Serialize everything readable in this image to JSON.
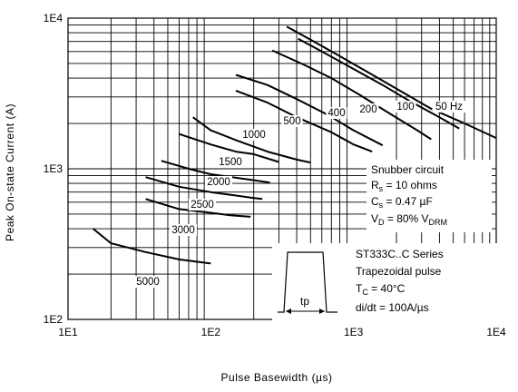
{
  "chart_data": {
    "type": "line",
    "title": "",
    "xlabel": "Pulse Basewidth (µs)",
    "ylabel": "Peak On-state Current (A)",
    "x_scale": "log",
    "y_scale": "log",
    "xlim": [
      10,
      10000
    ],
    "ylim": [
      100,
      10000
    ],
    "x_ticks": [
      "1E1",
      "1E2",
      "1E3",
      "1E4"
    ],
    "y_ticks": [
      "1E2",
      "1E3",
      "1E4"
    ],
    "grid": true,
    "series": [
      {
        "name": "50 Hz",
        "label": "50 Hz",
        "points": [
          [
            340,
            8800
          ],
          [
            500,
            7200
          ],
          [
            800,
            5600
          ],
          [
            1300,
            4300
          ],
          [
            2000,
            3400
          ],
          [
            3500,
            2500
          ],
          [
            6000,
            2000
          ],
          [
            10000,
            1600
          ]
        ]
      },
      {
        "name": "100",
        "label": "100",
        "points": [
          [
            410,
            7300
          ],
          [
            600,
            6000
          ],
          [
            1000,
            4600
          ],
          [
            1600,
            3600
          ],
          [
            2500,
            2800
          ],
          [
            4000,
            2200
          ],
          [
            5500,
            1850
          ]
        ]
      },
      {
        "name": "200",
        "label": "200",
        "points": [
          [
            270,
            6100
          ],
          [
            450,
            4900
          ],
          [
            700,
            4000
          ],
          [
            1100,
            3100
          ],
          [
            1700,
            2400
          ],
          [
            2800,
            1800
          ],
          [
            3500,
            1570
          ]
        ]
      },
      {
        "name": "400",
        "label": "400",
        "points": [
          [
            150,
            4200
          ],
          [
            250,
            3600
          ],
          [
            400,
            2900
          ],
          [
            650,
            2300
          ],
          [
            1000,
            1800
          ],
          [
            1600,
            1430
          ]
        ]
      },
      {
        "name": "500",
        "label": "500",
        "points": [
          [
            150,
            3300
          ],
          [
            250,
            2750
          ],
          [
            400,
            2200
          ],
          [
            700,
            1750
          ],
          [
            1000,
            1450
          ],
          [
            1350,
            1300
          ]
        ]
      },
      {
        "name": "1000",
        "label": "1000",
        "points": [
          [
            75,
            2200
          ],
          [
            100,
            1800
          ],
          [
            150,
            1550
          ],
          [
            250,
            1300
          ],
          [
            400,
            1150
          ],
          [
            500,
            1100
          ]
        ]
      },
      {
        "name": "1500",
        "label": "1500",
        "points": [
          [
            60,
            1700
          ],
          [
            100,
            1450
          ],
          [
            150,
            1300
          ],
          [
            200,
            1250
          ],
          [
            300,
            1110
          ]
        ]
      },
      {
        "name": "2000",
        "label": "2000",
        "points": [
          [
            45,
            1130
          ],
          [
            70,
            1000
          ],
          [
            100,
            920
          ],
          [
            200,
            840
          ],
          [
            260,
            810
          ]
        ]
      },
      {
        "name": "2500",
        "label": "2500",
        "points": [
          [
            35,
            880
          ],
          [
            60,
            760
          ],
          [
            100,
            700
          ],
          [
            200,
            640
          ],
          [
            230,
            630
          ]
        ]
      },
      {
        "name": "3000",
        "label": "3000",
        "points": [
          [
            35,
            630
          ],
          [
            60,
            540
          ],
          [
            100,
            510
          ],
          [
            140,
            490
          ],
          [
            190,
            480
          ]
        ]
      },
      {
        "name": "5000",
        "label": "5000",
        "points": [
          [
            15,
            400
          ],
          [
            20,
            320
          ],
          [
            35,
            280
          ],
          [
            60,
            250
          ],
          [
            100,
            235
          ]
        ]
      }
    ],
    "annotations": {
      "snubber_title": "Snubber circuit",
      "rs_main": "R",
      "rs_sub": "s",
      "rs_value": " = 10 ohms",
      "cs_main": "C",
      "cs_sub": "s",
      "cs_value": " = 0.47 µF",
      "vd_main": "V",
      "vd_sub": "D",
      "vd_mid": " = 80% V",
      "vd_sub2": "DRM",
      "series_line1": "ST333C..C Series",
      "series_line2": "Trapezoidal pulse",
      "tc_main": "T",
      "tc_sub": "C",
      "tc_value": " = 40°C",
      "didt": "di/dt = 100A/µs",
      "pulse_label": "tp"
    }
  }
}
